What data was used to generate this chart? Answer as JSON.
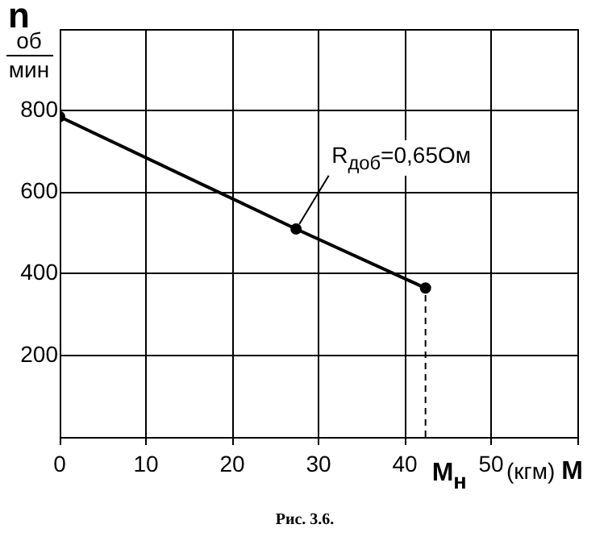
{
  "chart_data": {
    "type": "line",
    "ylabel": "n",
    "xlabel": "(кгм) М",
    "x": [
      0,
      27.4,
      42.4
    ],
    "series": [
      {
        "name": null,
        "color": "#000000",
        "values": [
          785,
          510,
          365
        ],
        "marker": "circle",
        "line_style": "solid"
      },
      {
        "type": "line",
        "color": "#000000",
        "x": [
          42.4,
          42.4
        ],
        "values": [
          0,
          365
        ],
        "marker": "none",
        "line_style": "dashed"
      }
    ],
    "xlim": [
      0,
      60
    ],
    "xticks": [
      0,
      10,
      20,
      30,
      40,
      50,
      {
        "value": 60,
        "label": null
      }
    ],
    "ylim": [
      0,
      1000
    ],
    "yticks": [
      {
        "value": 0,
        "label": null
      },
      200,
      400,
      600,
      800,
      {
        "value": 1000,
        "label": null
      }
    ],
    "grid": true,
    "annotations": [
      "об",
      "мин",
      {
        "text": "R$_{доб}$=0,65Ом",
        "x": 27.4,
        "y": 510
      },
      {
        "text": "M$_{н}$",
        "x": 42.4,
        "y": 0
      },
      "Рис. 3.6."
    ]
  }
}
